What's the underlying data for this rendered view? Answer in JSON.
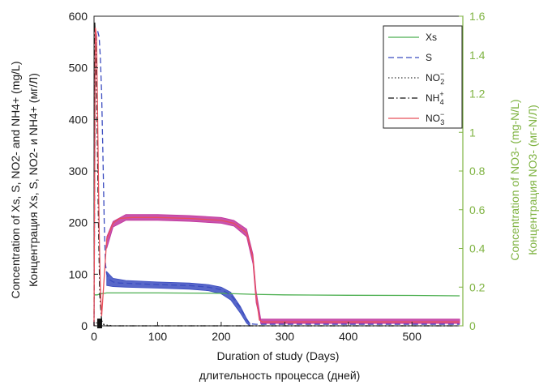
{
  "chart_data": {
    "type": "line",
    "xlabel": "Duration of study (Days)",
    "xlabel_ru": "длительность процесса (дней)",
    "ylabel_left": "Concentration of Xs, S, NO2- and NH4+ (mg/L)",
    "ylabel_left_ru": "Концентрация Xs, S, NO2- и NH4+ (мг/Л)",
    "ylabel_right": "Concentration of NO3- (mg-N/L)",
    "ylabel_right_ru": "Концентрация NO3- (мг-N/Л)",
    "xlim": [
      0,
      580
    ],
    "ylim_left": [
      0,
      600
    ],
    "ylim_right": [
      0,
      1.6
    ],
    "x_ticks": [
      "0",
      "100",
      "200",
      "300",
      "400",
      "500"
    ],
    "y_left_ticks": [
      "0",
      "100",
      "200",
      "300",
      "400",
      "500",
      "600"
    ],
    "y_right_ticks": [
      "0",
      "0.2",
      "0.4",
      "0.6",
      "0.8",
      "1",
      "1.2",
      "1.4",
      "1.6"
    ],
    "legend_position": "top-right",
    "series": [
      {
        "name": "Xs",
        "axis": "right",
        "color": "#4caf50",
        "style": "solid",
        "x": [
          0,
          5,
          10,
          20,
          40,
          100,
          200,
          250,
          300,
          400,
          500,
          575
        ],
        "y": [
          0.16,
          0.16,
          0.165,
          0.17,
          0.17,
          0.17,
          0.168,
          0.163,
          0.16,
          0.158,
          0.157,
          0.155
        ]
      },
      {
        "name": "S",
        "axis": "left",
        "color": "#3b4cc0",
        "style": "dashed",
        "x": [
          0,
          2,
          4,
          6,
          8,
          10,
          12,
          14,
          16,
          18,
          20,
          24,
          30,
          40,
          60,
          100,
          150,
          180,
          200,
          215,
          230,
          240,
          245,
          255,
          300,
          400,
          500,
          575
        ],
        "y": [
          0,
          540,
          568,
          570,
          560,
          520,
          450,
          330,
          200,
          120,
          100,
          90,
          85,
          83,
          82,
          80,
          78,
          75,
          70,
          60,
          35,
          12,
          4,
          3,
          3,
          3,
          3,
          3
        ]
      },
      {
        "name": "NO2-",
        "axis": "left",
        "color": "#333333",
        "style": "dotted",
        "x": [
          0,
          2,
          4,
          8,
          12,
          16,
          30,
          100,
          575
        ],
        "y": [
          0,
          3,
          6,
          10,
          6,
          2,
          0,
          0,
          0
        ]
      },
      {
        "name": "NH4+",
        "axis": "left",
        "color": "#111111",
        "style": "dashdot",
        "x": [
          0,
          1,
          3,
          5,
          7,
          9,
          12,
          15,
          20,
          100,
          575
        ],
        "y": [
          0,
          590,
          520,
          380,
          200,
          60,
          10,
          3,
          0,
          0,
          0
        ]
      },
      {
        "name": "NO3-",
        "axis": "right",
        "color": "#e8505b",
        "style": "solid",
        "x": [
          0,
          2,
          4,
          6,
          8,
          10,
          12,
          20,
          30,
          40,
          60,
          100,
          150,
          200,
          220,
          240,
          250,
          255,
          260,
          265,
          300,
          400,
          500,
          575
        ],
        "y": [
          0,
          1.54,
          1.5,
          1.0,
          0.5,
          0.2,
          0.05,
          0.45,
          0.53,
          0.555,
          0.56,
          0.56,
          0.555,
          0.545,
          0.53,
          0.48,
          0.35,
          0.15,
          0.03,
          0.02,
          0.02,
          0.02,
          0.02,
          0.02
        ]
      }
    ],
    "oscillation_bands": [
      {
        "series": "S",
        "axis": "left",
        "color": "#3b4cc0",
        "x_start": 20,
        "x_end": 245,
        "upper": [
          [
            20,
            105
          ],
          [
            30,
            92
          ],
          [
            50,
            88
          ],
          [
            100,
            85
          ],
          [
            150,
            83
          ],
          [
            180,
            80
          ],
          [
            200,
            75
          ],
          [
            215,
            65
          ],
          [
            230,
            38
          ],
          [
            240,
            14
          ],
          [
            245,
            5
          ]
        ],
        "lower": [
          [
            20,
            78
          ],
          [
            30,
            76
          ],
          [
            50,
            75
          ],
          [
            100,
            73
          ],
          [
            150,
            71
          ],
          [
            180,
            68
          ],
          [
            200,
            62
          ],
          [
            215,
            50
          ],
          [
            230,
            25
          ],
          [
            240,
            5
          ],
          [
            245,
            0
          ]
        ]
      },
      {
        "series": "NO3-",
        "axis": "right",
        "color": "#c0359e",
        "x_start": 20,
        "x_end": 262,
        "upper": [
          [
            20,
            0.46
          ],
          [
            30,
            0.54
          ],
          [
            50,
            0.575
          ],
          [
            100,
            0.575
          ],
          [
            150,
            0.57
          ],
          [
            200,
            0.56
          ],
          [
            220,
            0.545
          ],
          [
            240,
            0.5
          ],
          [
            250,
            0.37
          ],
          [
            255,
            0.18
          ],
          [
            262,
            0.04
          ]
        ],
        "lower": [
          [
            20,
            0.4
          ],
          [
            30,
            0.51
          ],
          [
            50,
            0.545
          ],
          [
            100,
            0.545
          ],
          [
            150,
            0.54
          ],
          [
            200,
            0.53
          ],
          [
            220,
            0.515
          ],
          [
            240,
            0.46
          ],
          [
            250,
            0.32
          ],
          [
            255,
            0.12
          ],
          [
            262,
            0.02
          ]
        ]
      },
      {
        "series": "NO3-",
        "axis": "right",
        "color": "#c0359e",
        "x_start": 262,
        "x_end": 575,
        "upper": [
          [
            262,
            0.035
          ],
          [
            575,
            0.035
          ]
        ],
        "lower": [
          [
            262,
            0.012
          ],
          [
            575,
            0.012
          ]
        ]
      }
    ]
  }
}
